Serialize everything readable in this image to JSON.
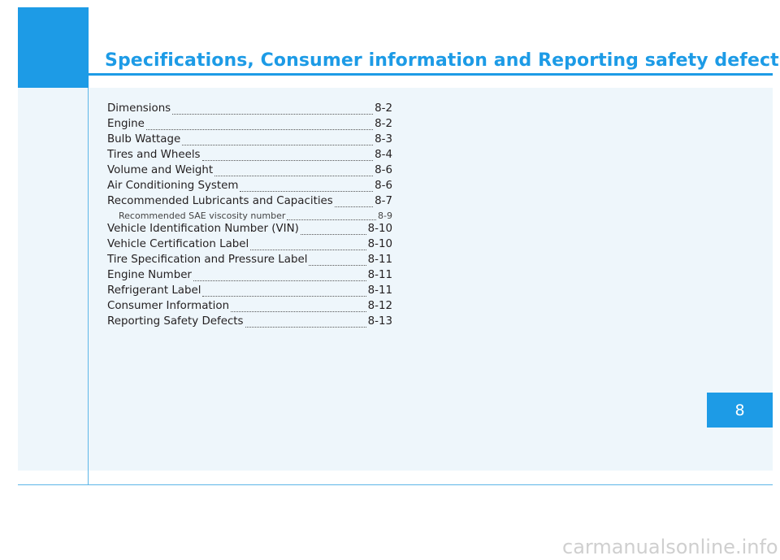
{
  "header": {
    "title": "Specifications, Consumer information and Reporting safety defects"
  },
  "toc": [
    {
      "label": "Dimensions",
      "page": "8-2"
    },
    {
      "label": "Engine",
      "page": "8-2"
    },
    {
      "label": "Bulb Wattage",
      "page": "8-3"
    },
    {
      "label": "Tires and Wheels",
      "page": "8-4"
    },
    {
      "label": "Volume and Weight",
      "page": "8-6"
    },
    {
      "label": "Air Conditioning System",
      "page": "8-6"
    },
    {
      "label": "Recommended Lubricants and Capacities",
      "page": "8-7"
    },
    {
      "label": "Recommended SAE viscosity number",
      "page": "8-9"
    },
    {
      "label": "Vehicle Identification Number (VIN)",
      "page": "8-10"
    },
    {
      "label": "Vehicle Certification Label",
      "page": "8-10"
    },
    {
      "label": "Tire Specification and Pressure Label",
      "page": "8-11"
    },
    {
      "label": "Engine Number",
      "page": "8-11"
    },
    {
      "label": "Refrigerant Label",
      "page": "8-11"
    },
    {
      "label": "Consumer Information",
      "page": "8-12"
    },
    {
      "label": "Reporting Safety Defects",
      "page": "8-13"
    }
  ],
  "chapter_tab": {
    "number": "8"
  },
  "watermark": "carmanualsonline.info",
  "colors": {
    "accent": "#1d9be6",
    "panel_background": "#eef6fb",
    "text": "#231f20"
  }
}
